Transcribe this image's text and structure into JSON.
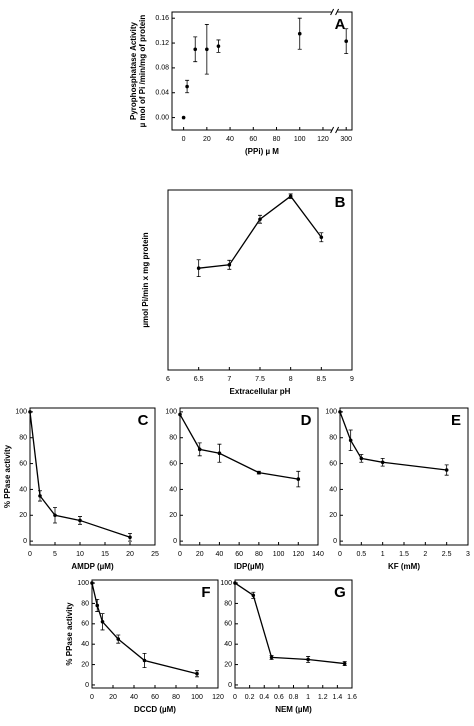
{
  "chart_data": [
    {
      "type": "scatter",
      "title": "A",
      "xlabel": "(PPi) µ M",
      "ylabel": [
        "Pyrophosphatase Activity",
        "µ mol of Pi /min/mg of protein"
      ],
      "x": [
        0,
        3,
        10,
        20,
        30,
        100,
        300
      ],
      "values": [
        0,
        0.05,
        0.11,
        0.11,
        0.115,
        0.135,
        0.123
      ],
      "errors": [
        0,
        0.01,
        0.02,
        0.04,
        0.01,
        0.025,
        0.02
      ],
      "color": "#000000",
      "xlim": [
        -10,
        305
      ],
      "xticks": [
        0,
        20,
        40,
        60,
        80,
        100,
        120,
        300
      ],
      "xbreak": [
        120,
        300
      ],
      "ylim": [
        -0.02,
        0.17
      ],
      "yticks": [
        {
          "value": 0,
          "label": "0.00"
        },
        {
          "value": 0.04,
          "label": "0.04"
        },
        {
          "value": 0.08,
          "label": "0.08"
        },
        {
          "value": 0.12,
          "label": "0.12"
        },
        {
          "value": 0.16,
          "label": "0.16"
        }
      ]
    },
    {
      "type": "line",
      "title": "B",
      "xlabel": "Extracellular pH",
      "ylabel": "µmol Pi/min x mg protein",
      "x": [
        6.5,
        7,
        7.5,
        8,
        8.5
      ],
      "values": [
        1.81,
        1.87,
        2.68,
        3.09,
        2.36
      ],
      "errors": [
        0.15,
        0.08,
        0.07,
        0.04,
        0.08
      ],
      "color": "#000000",
      "xlim": [
        6,
        9
      ],
      "xticks": [
        6,
        6.5,
        7,
        7.5,
        8,
        8.5,
        9
      ],
      "ylim": [
        0,
        3.2
      ]
    },
    {
      "type": "line",
      "title": "C",
      "xlabel": "AMDP (µM)",
      "ylabel": "% PPase activity",
      "x": [
        0,
        2,
        5,
        10,
        20
      ],
      "values": [
        100,
        35,
        20,
        16,
        3
      ],
      "errors": [
        0,
        4,
        6,
        3,
        3
      ],
      "color": "#000000",
      "xlim": [
        0,
        25
      ],
      "xticks": [
        0,
        5,
        10,
        15,
        20,
        25
      ],
      "ylim": [
        -3,
        103
      ],
      "yticks": [
        0,
        20,
        40,
        60,
        80,
        100
      ]
    },
    {
      "type": "line",
      "title": "D",
      "xlabel": "IDP(µM)",
      "x": [
        0,
        20,
        40,
        80,
        120
      ],
      "values": [
        98,
        71,
        68,
        53,
        48
      ],
      "errors": [
        0,
        5,
        7,
        1,
        6
      ],
      "color": "#000000",
      "xlim": [
        0,
        140
      ],
      "xticks": [
        0,
        20,
        40,
        60,
        80,
        100,
        120,
        140
      ],
      "ylim": [
        -3,
        103
      ],
      "yticks": [
        0,
        20,
        40,
        60,
        80,
        100
      ]
    },
    {
      "type": "line",
      "title": "E",
      "xlabel": "KF (mM)",
      "x": [
        0,
        0.25,
        0.5,
        1,
        2.5
      ],
      "values": [
        100,
        78,
        64,
        61,
        55
      ],
      "errors": [
        0,
        8,
        3,
        3,
        4
      ],
      "color": "#000000",
      "xlim": [
        0,
        3
      ],
      "xticks": [
        0,
        0.5,
        1,
        1.5,
        2,
        2.5,
        3
      ],
      "ylim": [
        -3,
        103
      ],
      "yticks": [
        0,
        20,
        40,
        60,
        80,
        100
      ]
    },
    {
      "type": "line",
      "title": "F",
      "xlabel": "DCCD (µM)",
      "ylabel": "% PPase activity",
      "x": [
        0,
        5,
        10,
        25,
        50,
        100
      ],
      "values": [
        100,
        78,
        62,
        45,
        24,
        11
      ],
      "errors": [
        0,
        6,
        8,
        4,
        7,
        3
      ],
      "color": "#000000",
      "xlim": [
        0,
        120
      ],
      "xticks": [
        0,
        20,
        40,
        60,
        80,
        100,
        120
      ],
      "ylim": [
        -3,
        103
      ],
      "yticks": [
        0,
        20,
        40,
        60,
        80,
        100
      ]
    },
    {
      "type": "line",
      "title": "G",
      "xlabel": "NEM (µM)",
      "x": [
        0,
        0.25,
        0.5,
        1,
        1.5
      ],
      "values": [
        100,
        88,
        27,
        25,
        21
      ],
      "errors": [
        0,
        3,
        2,
        3,
        2
      ],
      "color": "#000000",
      "xlim": [
        0,
        1.6
      ],
      "xticks": [
        0,
        0.2,
        0.4,
        0.6,
        0.8,
        1,
        1.2,
        1.4,
        1.6
      ],
      "ylim": [
        -3,
        103
      ],
      "yticks": [
        0,
        20,
        40,
        60,
        80,
        100
      ]
    }
  ]
}
